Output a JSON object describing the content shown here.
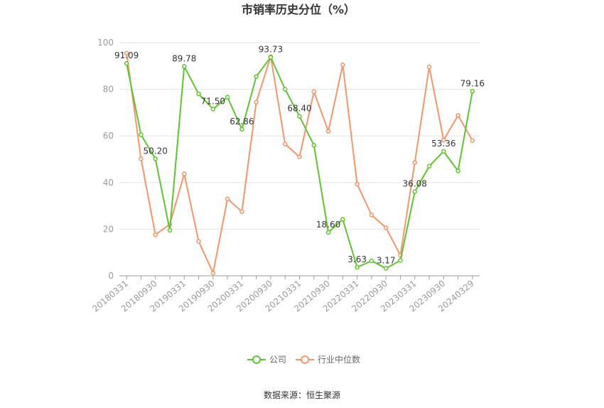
{
  "chart_data": {
    "type": "line",
    "title": "市销率历史分位（%）",
    "xlabel": "",
    "ylabel": "",
    "ylim": [
      0,
      100
    ],
    "yticks": [
      0,
      20,
      40,
      60,
      80,
      100
    ],
    "x": [
      "20180331",
      "20180630",
      "20180930",
      "20181231",
      "20190331",
      "20190630",
      "20190930",
      "20191231",
      "20200331",
      "20200630",
      "20200930",
      "20201231",
      "20210331",
      "20210630",
      "20210930",
      "20211231",
      "20220331",
      "20220630",
      "20220930",
      "20221231",
      "20230331",
      "20230630",
      "20230930",
      "20231231",
      "20240329"
    ],
    "xtick_labels": [
      "20180331",
      "20180930",
      "20190331",
      "20190930",
      "20200331",
      "20200930",
      "20210331",
      "20210930",
      "20220331",
      "20220930",
      "20230331",
      "20230930",
      "20240329"
    ],
    "series": [
      {
        "name": "公司",
        "color": "#5ec42e",
        "values": [
          91.09,
          60.5,
          50.2,
          19.5,
          89.78,
          78.0,
          71.5,
          76.6,
          62.86,
          85.5,
          93.73,
          80.0,
          68.4,
          56.0,
          18.6,
          24.2,
          3.63,
          6.4,
          3.17,
          6.6,
          36.08,
          47.0,
          53.36,
          45.0,
          79.16
        ],
        "labels": {
          "0": "91.09",
          "2": "50.20",
          "4": "89.78",
          "6": "71.50",
          "8": "62.86",
          "10": "93.73",
          "12": "68.40",
          "14": "18.60",
          "16": "3.63",
          "18": "3.17",
          "20": "36.08",
          "22": "53.36",
          "24": "79.16"
        }
      },
      {
        "name": "行业中位数",
        "color": "#f4956a",
        "values": [
          95.5,
          50.2,
          17.6,
          22.1,
          43.7,
          14.8,
          1.2,
          33.0,
          27.5,
          74.5,
          94.0,
          56.5,
          51.0,
          79.0,
          62.0,
          90.5,
          39.3,
          26.1,
          20.6,
          8.8,
          48.6,
          89.6,
          58.2,
          68.8,
          58.0
        ]
      }
    ],
    "legend_position": "bottom",
    "grid": true
  },
  "source_text": "数据来源：恒生聚源"
}
